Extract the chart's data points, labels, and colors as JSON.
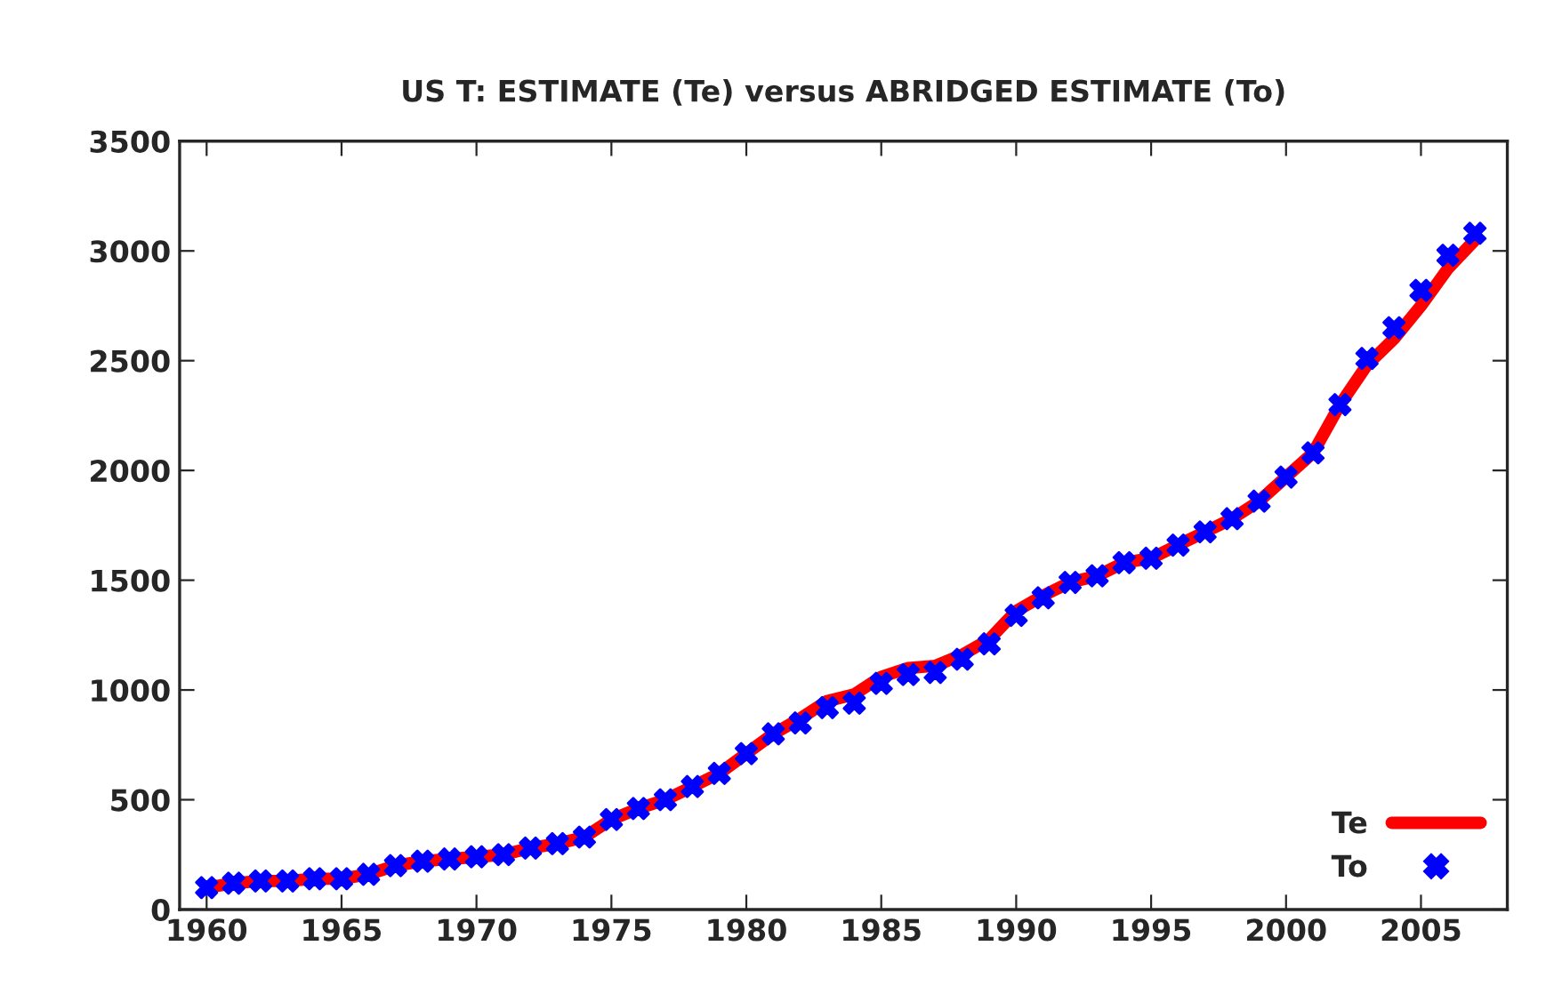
{
  "chart_data": {
    "type": "line",
    "title": "US T: ESTIMATE (Te) versus ABRIDGED ESTIMATE (To)",
    "x": [
      1960,
      1961,
      1962,
      1963,
      1964,
      1965,
      1966,
      1967,
      1968,
      1969,
      1970,
      1971,
      1972,
      1973,
      1974,
      1975,
      1976,
      1977,
      1978,
      1979,
      1980,
      1981,
      1982,
      1983,
      1984,
      1985,
      1986,
      1987,
      1988,
      1989,
      1990,
      1991,
      1992,
      1993,
      1994,
      1995,
      1996,
      1997,
      1998,
      1999,
      2000,
      2001,
      2002,
      2003,
      2004,
      2005,
      2006,
      2007
    ],
    "series": [
      {
        "name": "Te",
        "color": "#ff0000",
        "marker": "none",
        "line_style": "solid",
        "values": [
          100,
          120,
          130,
          130,
          140,
          140,
          160,
          200,
          220,
          230,
          240,
          250,
          280,
          300,
          330,
          410,
          460,
          500,
          560,
          620,
          710,
          800,
          870,
          950,
          980,
          1060,
          1100,
          1110,
          1160,
          1230,
          1360,
          1430,
          1490,
          1520,
          1580,
          1600,
          1660,
          1720,
          1780,
          1860,
          1970,
          2080,
          2300,
          2480,
          2600,
          2750,
          2920,
          3050
        ]
      },
      {
        "name": "To",
        "type": "scatter",
        "color": "#0000ff",
        "marker": "cross",
        "values": [
          100,
          120,
          130,
          130,
          140,
          140,
          160,
          200,
          220,
          230,
          240,
          250,
          280,
          300,
          330,
          410,
          460,
          500,
          560,
          620,
          710,
          800,
          850,
          920,
          940,
          1030,
          1070,
          1080,
          1140,
          1210,
          1340,
          1420,
          1490,
          1520,
          1580,
          1600,
          1660,
          1720,
          1780,
          1860,
          1970,
          2080,
          2300,
          2510,
          2650,
          2820,
          2980,
          3080
        ]
      }
    ],
    "xlim": [
      1959,
      2008.2
    ],
    "xticks": [
      1960,
      1965,
      1970,
      1975,
      1980,
      1985,
      1990,
      1995,
      2000,
      2005
    ],
    "ylim": [
      0,
      3500
    ],
    "yticks": [
      0,
      500,
      1000,
      1500,
      2000,
      2500,
      3000,
      3500
    ],
    "legend": "bottom right"
  }
}
